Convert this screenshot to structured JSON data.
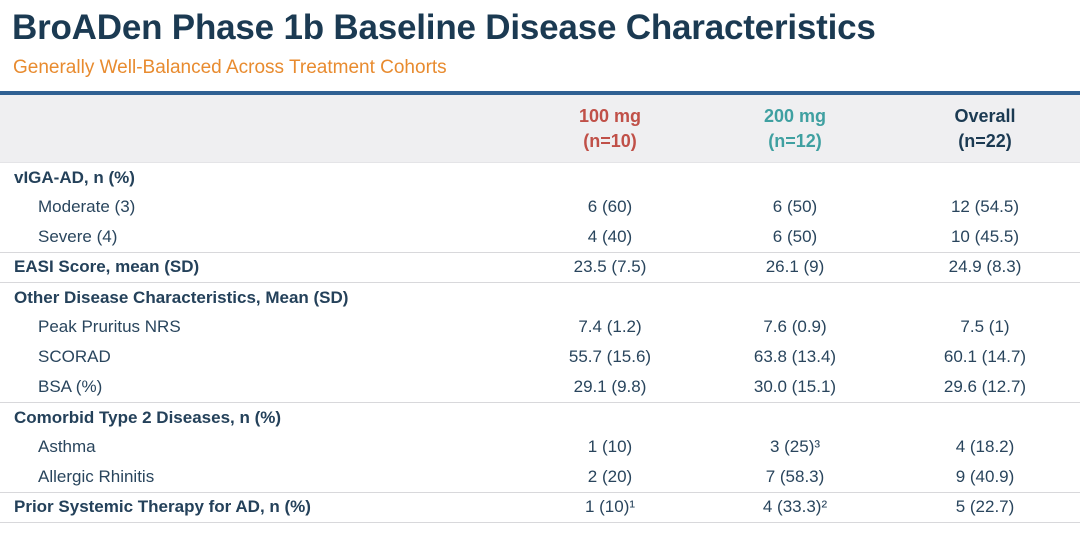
{
  "slide": {
    "title": "BroADen Phase 1b Baseline Disease Characteristics",
    "subtitle": "Generally Well-Balanced Across Treatment Cohorts"
  },
  "colors": {
    "title_navy": "#1b3a52",
    "subtitle_orange": "#e88b2f",
    "rule_blue": "#2f6093",
    "header_bg": "#efeff1",
    "cohort_100mg_red": "#c05048",
    "cohort_200mg_teal": "#3fa0a1",
    "overall_navy": "#1b3a52",
    "body_text": "#29455d",
    "divider_gray": "#d8d8db"
  },
  "table": {
    "columns": [
      {
        "line1": "100 mg",
        "line2": "(n=10)"
      },
      {
        "line1": "200 mg",
        "line2": "(n=12)"
      },
      {
        "line1": "Overall",
        "line2": "(n=22)"
      }
    ],
    "rows": [
      {
        "label": "vIGA-AD, n (%)",
        "type": "section",
        "values": [
          "",
          "",
          ""
        ],
        "divider_below": false
      },
      {
        "label": "Moderate (3)",
        "type": "sub",
        "values": [
          "6 (60)",
          "6 (50)",
          "12 (54.5)"
        ],
        "divider_below": false
      },
      {
        "label": "Severe (4)",
        "type": "sub",
        "values": [
          "4 (40)",
          "6 (50)",
          "10 (45.5)"
        ],
        "divider_below": true
      },
      {
        "label": "EASI Score, mean (SD)",
        "type": "section-values",
        "values": [
          "23.5 (7.5)",
          "26.1 (9)",
          "24.9 (8.3)"
        ],
        "divider_below": true
      },
      {
        "label": "Other Disease Characteristics, Mean (SD)",
        "type": "section",
        "values": [
          "",
          "",
          ""
        ],
        "divider_below": false
      },
      {
        "label": "Peak Pruritus NRS",
        "type": "sub",
        "values": [
          "7.4 (1.2)",
          "7.6 (0.9)",
          "7.5 (1)"
        ],
        "divider_below": false
      },
      {
        "label": "SCORAD",
        "type": "sub",
        "values": [
          "55.7 (15.6)",
          "63.8 (13.4)",
          "60.1 (14.7)"
        ],
        "divider_below": false
      },
      {
        "label": "BSA (%)",
        "type": "sub",
        "values": [
          "29.1 (9.8)",
          "30.0 (15.1)",
          "29.6 (12.7)"
        ],
        "divider_below": true
      },
      {
        "label": "Comorbid Type 2 Diseases, n (%)",
        "type": "section",
        "values": [
          "",
          "",
          ""
        ],
        "divider_below": false
      },
      {
        "label": "Asthma",
        "type": "sub",
        "values": [
          "1 (10)",
          "3 (25)³",
          "4 (18.2)"
        ],
        "divider_below": false
      },
      {
        "label": "Allergic Rhinitis",
        "type": "sub",
        "values": [
          "2 (20)",
          "7 (58.3)",
          "9 (40.9)"
        ],
        "divider_below": true
      },
      {
        "label": "Prior Systemic Therapy for AD, n (%)",
        "type": "section-values",
        "values": [
          "1 (10)¹",
          "4 (33.3)²",
          "5 (22.7)"
        ],
        "divider_below": true
      }
    ]
  }
}
